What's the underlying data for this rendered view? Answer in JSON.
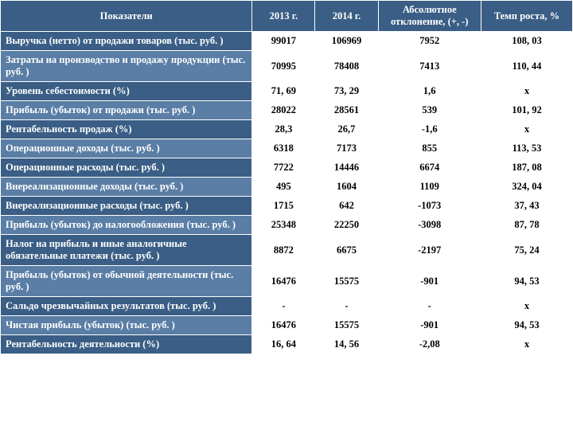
{
  "table": {
    "type": "table",
    "header_bg": "#3a5e85",
    "band_a_bg": "#3a5e85",
    "band_b_bg": "#5a7ea5",
    "cell_bg": "#ffffff",
    "text_color": "#000000",
    "header_text_color": "#ffffff",
    "border_color": "#ffffff",
    "font_family": "Georgia",
    "header_fontsize": 12.5,
    "cell_fontsize": 12.5,
    "columns": [
      {
        "key": "label",
        "title": "Показатели",
        "width_pct": 44,
        "align": "left"
      },
      {
        "key": "y2013",
        "title": "2013 г.",
        "width_pct": 11,
        "align": "center"
      },
      {
        "key": "y2014",
        "title": "2014 г.",
        "width_pct": 11,
        "align": "center"
      },
      {
        "key": "dev",
        "title": "Абсолютное отклонение, (+, -)",
        "width_pct": 18,
        "align": "center"
      },
      {
        "key": "rate",
        "title": "Темп роста, %",
        "width_pct": 16,
        "align": "center"
      }
    ],
    "rows": [
      {
        "label": "Выручка (нетто) от продажи товаров (тыс. руб. )",
        "y2013": "99017",
        "y2014": "106969",
        "dev": "7952",
        "rate": "108, 03"
      },
      {
        "label": "Затраты на производство и продажу продукции (тыс. руб. )",
        "y2013": "70995",
        "y2014": "78408",
        "dev": "7413",
        "rate": "110, 44"
      },
      {
        "label": "Уровень себестоимости (%)",
        "y2013": "71, 69",
        "y2014": "73, 29",
        "dev": "1,6",
        "rate": "х"
      },
      {
        "label": "Прибыль (убыток) от продажи  (тыс. руб. )",
        "y2013": "28022",
        "y2014": "28561",
        "dev": "539",
        "rate": "101, 92"
      },
      {
        "label": "Рентабельность продаж (%)",
        "y2013": "28,3",
        "y2014": "26,7",
        "dev": "-1,6",
        "rate": "х"
      },
      {
        "label": "Операционные доходы (тыс. руб. )",
        "y2013": "6318",
        "y2014": "7173",
        "dev": "855",
        "rate": "113, 53"
      },
      {
        "label": "Операционные расходы (тыс. руб. )",
        "y2013": "7722",
        "y2014": "14446",
        "dev": "6674",
        "rate": "187, 08"
      },
      {
        "label": "Внереализационные доходы (тыс. руб. )",
        "y2013": "495",
        "y2014": "1604",
        "dev": "1109",
        "rate": "324, 04"
      },
      {
        "label": "Внереализационные расходы (тыс. руб. )",
        "y2013": "1715",
        "y2014": "642",
        "dev": "-1073",
        "rate": "37, 43"
      },
      {
        "label": "Прибыль (убыток) до налогообложения  (тыс. руб. )",
        "y2013": "25348",
        "y2014": "22250",
        "dev": "-3098",
        "rate": "87, 78"
      },
      {
        "label": "Налог на прибыль и иные аналогичные обязательные платежи\n (тыс. руб. )",
        "y2013": "8872",
        "y2014": "6675",
        "dev": "-2197",
        "rate": "75, 24"
      },
      {
        "label": "Прибыль (убыток) от обычной деятельности (тыс. руб. )",
        "y2013": "16476",
        "y2014": "15575",
        "dev": "-901",
        "rate": "94, 53"
      },
      {
        "label": "Сальдо чрезвычайных результатов (тыс. руб. )",
        "y2013": "-",
        "y2014": "-",
        "dev": "-",
        "rate": "х"
      },
      {
        "label": "Чистая прибыль (убыток) (тыс. руб. )",
        "y2013": "16476",
        "y2014": "15575",
        "dev": "-901",
        "rate": "94, 53"
      },
      {
        "label": "Рентабельность деятельности (%)",
        "y2013": "16, 64",
        "y2014": "14, 56",
        "dev": "-2,08",
        "rate": "х"
      }
    ]
  }
}
